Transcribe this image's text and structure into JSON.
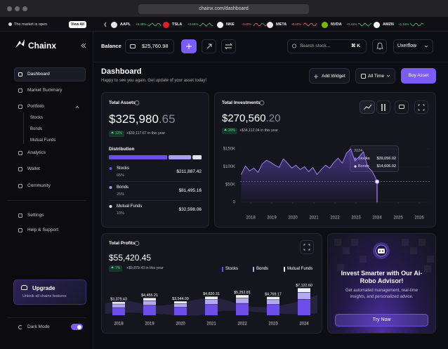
{
  "browser": {
    "url": "chainx.com/dashboard"
  },
  "ticker": {
    "status": "The market is open",
    "view_all": "View All",
    "items": [
      {
        "symbol": "AAPL",
        "change": "+6.48%",
        "color": "#4ade80",
        "icon": "#e5e5e5"
      },
      {
        "symbol": "TSLA",
        "change": "+0.66%",
        "color": "#4ade80",
        "icon": "#e11d2a"
      },
      {
        "symbol": "NKE",
        "change": "-0.60%",
        "color": "#f87171",
        "icon": "#f2f2f2"
      },
      {
        "symbol": "META",
        "change": "-0.60%",
        "color": "#f87171",
        "icon": "#e8e8e8"
      },
      {
        "symbol": "NVDA",
        "change": "+0.41%",
        "color": "#4ade80",
        "icon": "#76b900"
      },
      {
        "symbol": "AMZN",
        "change": "+1.16%",
        "color": "#4ade80",
        "icon": "#f5f5f5"
      }
    ]
  },
  "sidebar": {
    "brand": "Chainx",
    "nav": [
      "Dashboard",
      "Market Summary",
      "Portfolio"
    ],
    "portfolio_items": [
      "Stocks",
      "Bonds",
      "Mutual Funds"
    ],
    "nav2": [
      "Analytics",
      "Wallet",
      "Community"
    ],
    "footer_nav": [
      "Settings",
      "Help & Support"
    ],
    "upgrade": {
      "title": "Upgrade",
      "text": "Unlock all chainx features"
    },
    "dark_mode": "Dark Mode"
  },
  "topbar": {
    "balance_label": "Balance",
    "balance": "$25,760.98",
    "search": "Search stock...",
    "shortcut": "⌘ K",
    "user": "Uxerflow"
  },
  "header": {
    "title": "Dashboard",
    "subtitle": "Happy to see you again. Get update of your asset today!",
    "add_widget": "Add Widget",
    "range": "All Time",
    "buy": "Buy Asset"
  },
  "total_assets": {
    "title": "Total Assets",
    "value_main": "$325,980",
    "value_cents": ".65",
    "change": "12%",
    "change_text": "+$39,117.67 in this year",
    "distribution_title": "Distribution",
    "distribution": {
      "type": "bar",
      "categories": [
        "Stocks",
        "Bonds",
        "Mutual Funds"
      ],
      "values": [
        65,
        25,
        10
      ],
      "value_labels": [
        "65%",
        "25%",
        "10%"
      ],
      "amounts": [
        "$211,887.42",
        "$81,495.16",
        "$32,598.06"
      ],
      "colors": [
        "#6d4ee8",
        "#a99ef0",
        "#e6e4f2"
      ]
    }
  },
  "total_investments": {
    "title": "Total Investments",
    "value_main": "$270,560",
    "value_cents": ".20",
    "change": "20%",
    "change_text": "+$34,112.04 in this year",
    "chart": {
      "type": "line",
      "x": [
        2017.55,
        2017.75,
        2017.95,
        2018.15,
        2018.35,
        2018.55,
        2018.75,
        2018.95,
        2019.15,
        2019.35,
        2019.55,
        2019.75,
        2019.95,
        2020.15,
        2020.35,
        2020.55,
        2020.75,
        2020.95,
        2021.15,
        2021.35,
        2021.55,
        2021.75,
        2021.95,
        2022.15,
        2022.35,
        2022.55,
        2022.75,
        2022.95,
        2023.15,
        2023.35,
        2023.55,
        2023.75,
        2023.9,
        2024.0
      ],
      "values": [
        78000,
        102000,
        88000,
        96000,
        84000,
        108000,
        118000,
        112000,
        104000,
        98000,
        122000,
        110000,
        96000,
        104000,
        92000,
        100000,
        86000,
        98000,
        78000,
        92000,
        104000,
        96000,
        112000,
        124000,
        110000,
        138000,
        150000,
        116000,
        128000,
        142000,
        100000,
        88000,
        72000,
        58000
      ],
      "color": "#a78bfa",
      "xlim": [
        2017.5,
        2026.5
      ],
      "xticks": [
        2018,
        2019,
        2020,
        2021,
        2022,
        2023,
        2024,
        2025,
        2026
      ],
      "ylim": [
        0,
        160000
      ],
      "yticks": [
        {
          "value": 150000,
          "label": "$150K"
        },
        {
          "value": 100000,
          "label": "$100K"
        },
        {
          "value": 50000,
          "label": "$50K"
        },
        0
      ],
      "grid": true,
      "tooltip": {
        "title": "2024",
        "items": [
          {
            "name": "Stocks",
            "value": "$39,056.02",
            "color": "#8b6cf6"
          },
          {
            "name": "Bonds",
            "value": "$14,606.02",
            "color": "#e6e4f2"
          }
        ]
      }
    }
  },
  "total_profits": {
    "title": "Total Profits",
    "value": "$55,420.45",
    "change": "7%",
    "change_text": "+$9,879.43 in this year",
    "chart": {
      "type": "bar",
      "stacked": true,
      "categories": [
        "2018",
        "2019",
        "2020",
        "2021",
        "2022",
        "2023",
        "2024"
      ],
      "series": [
        {
          "name": "Stocks",
          "color": "#6d4ee8",
          "values": [
            2027.66,
            2673.13,
            2126.45,
            2898.19,
            3151.69,
            2861.5,
            4273.56
          ]
        },
        {
          "name": "Bonds",
          "color": "#b3a9f2",
          "values": [
            844.86,
            1113.8,
            886.02,
            1207.58,
            1313.2,
            1192.29,
            1780.65
          ]
        },
        {
          "name": "Mutual Funds",
          "color": "#f1f0f7",
          "values": [
            506.91,
            668.28,
            531.62,
            724.54,
            787.92,
            715.38,
            1068.39
          ]
        }
      ],
      "totals": [
        3379.43,
        4455.21,
        3544.09,
        4830.31,
        5252.81,
        4769.17,
        7122.6
      ],
      "value_labels": [
        "$3,379.43",
        "$4,455.21",
        "$3,544.09",
        "$4,830.31",
        "$5,252.81",
        "$4,769.17",
        "$7,122.60"
      ],
      "ylim": [
        0,
        8000
      ]
    }
  },
  "advisor": {
    "title": "Invest Smarter with Our Ai- Robo Advisor!",
    "text": "Get automated management, real-time insights, and personalized advice.",
    "cta": "Try Now"
  }
}
